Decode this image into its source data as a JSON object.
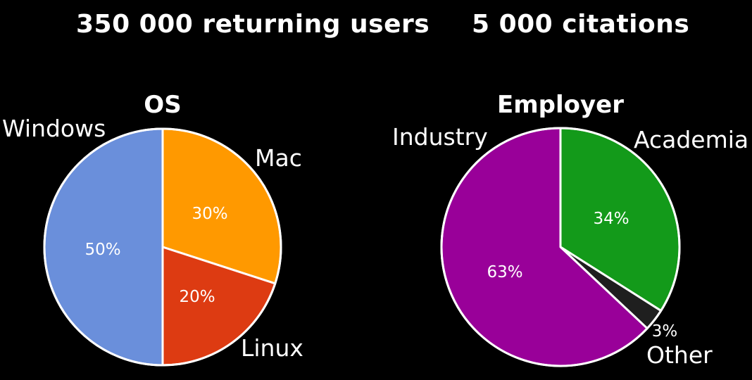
{
  "headlines": {
    "left": "350 000 returning users",
    "right": "5 000 citations"
  },
  "chart_data": [
    {
      "type": "pie",
      "title": "OS",
      "slices": [
        {
          "label": "Mac",
          "value": 30,
          "value_label": "30%",
          "color": "#ff9900"
        },
        {
          "label": "Linux",
          "value": 20,
          "value_label": "20%",
          "color": "#dd3b12"
        },
        {
          "label": "Windows",
          "value": 50,
          "value_label": "50%",
          "color": "#6a8fdb"
        }
      ]
    },
    {
      "type": "pie",
      "title": "Employer",
      "slices": [
        {
          "label": "Academia",
          "value": 34,
          "value_label": "34%",
          "color": "#139a1a"
        },
        {
          "label": "Other",
          "value": 3,
          "value_label": "3%",
          "color": "#1f1f1f"
        },
        {
          "label": "Industry",
          "value": 63,
          "value_label": "63%",
          "color": "#990099"
        }
      ]
    }
  ]
}
